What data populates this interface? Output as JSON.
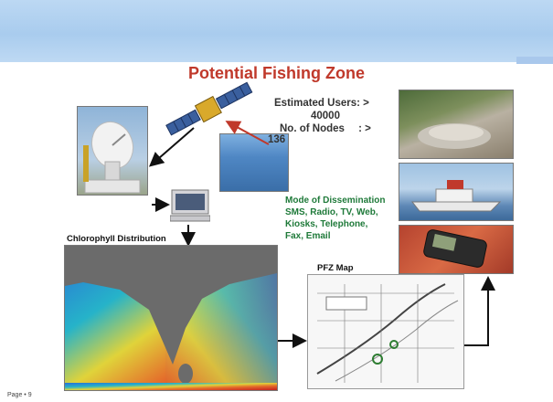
{
  "slide": {
    "title": "Potential Fishing Zone",
    "estimated_users_label": "Estimated Users: >",
    "estimated_users_value": "40000",
    "nodes_label": "No. of Nodes",
    "nodes_arrow": ": >",
    "nodes_value": "136",
    "dissemination_title": "Mode of Dissemination",
    "dissemination_line1": "SMS, Radio, TV, Web,",
    "dissemination_line2": "Kiosks, Telephone,",
    "dissemination_line3": "Fax, Email",
    "chlorophyll_label": "Chlorophyll Distribution",
    "pfz_map_label": "PFZ Map",
    "page_number": "Page • 9"
  },
  "colors": {
    "title": "#c0392b",
    "dissemination_text": "#1f7a3a",
    "header_band": "#a9ccee",
    "arrow": "#111111"
  },
  "icons": [
    "satellite-dish",
    "satellite",
    "computer",
    "fishing-boat",
    "mobile-phone"
  ]
}
